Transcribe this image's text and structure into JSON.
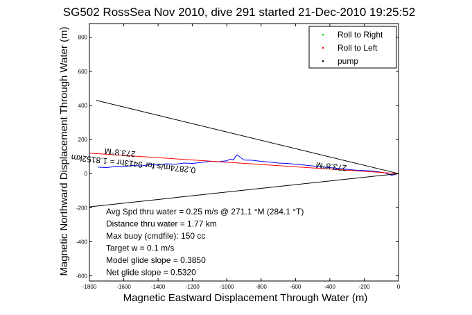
{
  "chart_data": {
    "type": "line",
    "title": "SG502 RossSea Nov 2010, dive 291 started 21-Dec-2010 19:25:52",
    "xlabel": "Magnetic Eastward Displacement Through Water (m)",
    "ylabel": "Magnetic Northward Displacement Through Water (m)",
    "xlim": [
      -1800,
      0
    ],
    "ylim": [
      -630,
      880
    ],
    "x_ticks": [
      "-1800",
      "-1600",
      "-1400",
      "-1200",
      "-1000",
      "-800",
      "-600",
      "-400",
      "-200",
      "0"
    ],
    "y_ticks": [
      "-600",
      "-400",
      "-200",
      "0",
      "200",
      "400",
      "600",
      "800"
    ],
    "legend": {
      "placement": "top-right",
      "entries": [
        {
          "label": "Roll to Right",
          "color": "#00cc00"
        },
        {
          "label": "Roll to Left",
          "color": "#ff0000"
        },
        {
          "label": "pump",
          "color": "#000000"
        }
      ]
    },
    "series": [
      {
        "color": "#0000ff",
        "x": [
          0,
          -40,
          -80,
          -150,
          -250,
          -350,
          -450,
          -550,
          -650,
          -700,
          -750,
          -800,
          -850,
          -900,
          -920,
          -940,
          -950,
          -960,
          -980,
          -1000,
          -1050,
          -1100,
          -1150,
          -1200,
          -1250,
          -1300,
          -1350,
          -1400,
          -1450,
          -1500,
          -1550,
          -1600,
          -1650,
          -1700,
          -1750
        ],
        "y": [
          0,
          -10,
          5,
          15,
          20,
          30,
          40,
          50,
          60,
          62,
          68,
          72,
          78,
          80,
          95,
          110,
          100,
          80,
          85,
          75,
          70,
          72,
          65,
          60,
          62,
          55,
          58,
          50,
          52,
          45,
          48,
          40,
          42,
          35,
          38
        ]
      },
      {
        "color": "#000000",
        "x": [
          0,
          -1760
        ],
        "y": [
          0,
          430
        ]
      },
      {
        "color": "#000000",
        "x": [
          0,
          -1800
        ],
        "y": [
          0,
          -195
        ]
      },
      {
        "color": "#ff0000",
        "x": [
          0,
          -1800
        ],
        "y": [
          0,
          120
        ]
      }
    ],
    "annotations": [
      "273.8°M",
      "273.8°M",
      "0.2874m/s for 9413hr = 1.8152km"
    ],
    "info_lines": [
      "Avg Spd thru water =  0.25 m/s @ 271.1   °M (284.1 °T)",
      "Distance thru water =  1.77 km",
      "Max buoy (cmdfile): 150 cc",
      "Target w = 0.1 m/s",
      "Model glide slope = 0.3850",
      "Net glide slope = 0.5320"
    ],
    "grid": false
  }
}
